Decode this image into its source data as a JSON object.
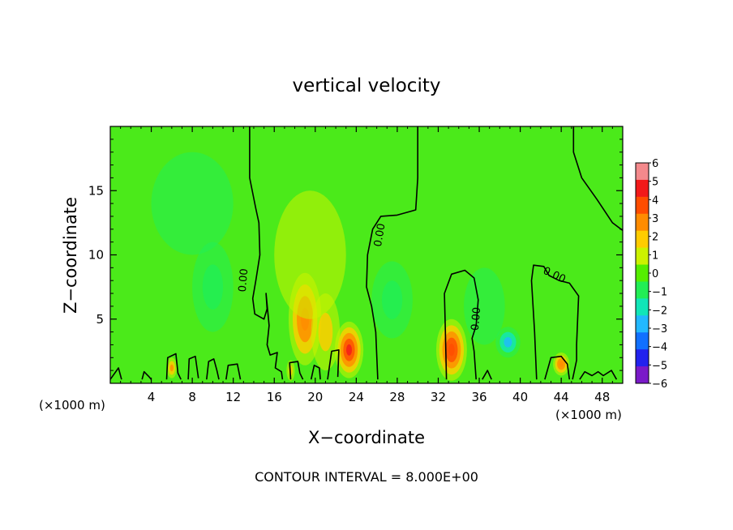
{
  "chart_data": {
    "type": "heatmap",
    "title": "vertical velocity",
    "xlabel": "X−coordinate",
    "ylabel": "Z−coordinate",
    "x_unit": "(×1000 m)",
    "y_unit": "(×1000 m)",
    "footer": "CONTOUR INTERVAL = 8.000E+00",
    "contour_label": "0.00",
    "xlim": [
      0,
      50
    ],
    "ylim": [
      0,
      20
    ],
    "xticks": [
      "4",
      "8",
      "12",
      "16",
      "20",
      "24",
      "28",
      "32",
      "36",
      "40",
      "44",
      "48"
    ],
    "xtick_values": [
      4,
      8,
      12,
      16,
      20,
      24,
      28,
      32,
      36,
      40,
      44,
      48
    ],
    "yticks": [
      "5",
      "10",
      "15"
    ],
    "ytick_values": [
      5,
      10,
      15
    ],
    "colorbar": {
      "labels": [
        "6",
        "5",
        "4",
        "3",
        "2",
        "1",
        "0",
        "−1",
        "−2",
        "−3",
        "−4",
        "−5",
        "−6"
      ],
      "colors": [
        "#f4898c",
        "#f21a1a",
        "#ff4d00",
        "#ff8c00",
        "#ffcc00",
        "#ccf200",
        "#55ee00",
        "#22ee55",
        "#11e6b8",
        "#22b8ff",
        "#1170ff",
        "#2222ee",
        "#7a1ac8"
      ]
    },
    "field_background": "#4bea1a",
    "blobs": [
      {
        "x": 19.0,
        "z": 5.0,
        "rx": 1.6,
        "rz": 3.6,
        "w": 3.3
      },
      {
        "x": 23.3,
        "z": 2.6,
        "rx": 1.4,
        "rz": 2.2,
        "w": 4.6
      },
      {
        "x": 33.3,
        "z": 2.6,
        "rx": 1.5,
        "rz": 2.4,
        "w": 4.3
      },
      {
        "x": 44.0,
        "z": 1.5,
        "rx": 0.8,
        "rz": 0.9,
        "w": 3.2
      },
      {
        "x": 21.0,
        "z": 4.0,
        "rx": 1.4,
        "rz": 3.0,
        "w": 2.0
      },
      {
        "x": 19.5,
        "z": 10.0,
        "rx": 3.5,
        "rz": 5.0,
        "w": 0.7
      },
      {
        "x": 10.0,
        "z": 7.5,
        "rx": 2.0,
        "rz": 3.5,
        "w": -1.3
      },
      {
        "x": 27.5,
        "z": 6.5,
        "rx": 2.0,
        "rz": 3.0,
        "w": -1.1
      },
      {
        "x": 38.8,
        "z": 3.2,
        "rx": 1.2,
        "rz": 1.2,
        "w": -2.6
      },
      {
        "x": 36.5,
        "z": 6.0,
        "rx": 2.0,
        "rz": 3.0,
        "w": -0.9
      },
      {
        "x": 8.0,
        "z": 14.0,
        "rx": 4.0,
        "rz": 4.0,
        "w": -0.6
      },
      {
        "x": 6.0,
        "z": 1.2,
        "rx": 0.5,
        "rz": 0.8,
        "w": 2.6
      },
      {
        "x": 17.6,
        "z": 1.0,
        "rx": 0.4,
        "rz": 0.8,
        "w": 2.0
      }
    ],
    "contours": [
      [
        [
          13.6,
          20
        ],
        [
          13.6,
          16
        ],
        [
          14.2,
          13.6
        ],
        [
          14.5,
          12.5
        ],
        [
          14.6,
          10
        ],
        [
          14.2,
          8
        ],
        [
          13.9,
          6.6
        ],
        [
          14.1,
          5.4
        ],
        [
          15,
          5
        ],
        [
          15.3,
          5.8
        ],
        [
          15.2,
          7.0
        ],
        [
          15.5,
          4.5
        ],
        [
          15.3,
          3
        ],
        [
          15.6,
          2.2
        ],
        [
          16.3,
          2.4
        ],
        [
          16.1,
          1.2
        ],
        [
          16.7,
          0.9
        ],
        [
          16.8,
          0.3
        ]
      ],
      [
        [
          30.0,
          20
        ],
        [
          30.0,
          16
        ],
        [
          29.8,
          13.5
        ],
        [
          28.0,
          13.1
        ],
        [
          26.4,
          13.0
        ],
        [
          25.6,
          12.0
        ],
        [
          25.1,
          10.0
        ],
        [
          25.0,
          7.5
        ],
        [
          25.5,
          6.0
        ],
        [
          25.9,
          4.0
        ],
        [
          26.1,
          0.3
        ]
      ],
      [
        [
          32.8,
          0.3
        ],
        [
          32.7,
          4
        ],
        [
          32.6,
          7
        ],
        [
          33.3,
          8.5
        ],
        [
          34.6,
          8.8
        ],
        [
          35.5,
          8.2
        ],
        [
          35.9,
          6.5
        ],
        [
          35.7,
          4.5
        ],
        [
          35.3,
          3.5
        ],
        [
          35.5,
          2.5
        ],
        [
          35.7,
          0.3
        ]
      ],
      [
        [
          41.6,
          0.3
        ],
        [
          41.4,
          4
        ],
        [
          41.1,
          8
        ],
        [
          41.3,
          9.2
        ],
        [
          42.3,
          9.1
        ],
        [
          42.8,
          8.4
        ],
        [
          43.8,
          8.0
        ],
        [
          44.8,
          7.8
        ],
        [
          45.7,
          6.8
        ],
        [
          45.6,
          5
        ],
        [
          45.5,
          3
        ],
        [
          45.5,
          1.8
        ],
        [
          45.1,
          0.3
        ]
      ],
      [
        [
          45.2,
          20
        ],
        [
          45.2,
          18
        ],
        [
          46.0,
          16.0
        ],
        [
          47.5,
          14.3
        ],
        [
          49.0,
          12.5
        ],
        [
          50,
          11.9
        ]
      ],
      [
        [
          0,
          0.3
        ],
        [
          0.8,
          1.2
        ],
        [
          1.1,
          0.3
        ]
      ],
      [
        [
          3.1,
          0.3
        ],
        [
          3.3,
          0.9
        ],
        [
          3.8,
          0.5
        ],
        [
          4.0,
          0.3
        ]
      ],
      [
        [
          5.5,
          0.3
        ],
        [
          5.6,
          2.0
        ],
        [
          6.4,
          2.3
        ],
        [
          6.6,
          0.8
        ],
        [
          6.9,
          0.3
        ]
      ],
      [
        [
          7.6,
          0.3
        ],
        [
          7.7,
          1.9
        ],
        [
          8.3,
          2.1
        ],
        [
          8.6,
          0.4
        ]
      ],
      [
        [
          9.4,
          0.3
        ],
        [
          9.6,
          1.7
        ],
        [
          10.1,
          1.9
        ],
        [
          10.4,
          1.0
        ],
        [
          10.6,
          0.3
        ]
      ],
      [
        [
          11.3,
          0.3
        ],
        [
          11.5,
          1.4
        ],
        [
          12.4,
          1.5
        ],
        [
          12.7,
          0.3
        ]
      ],
      [
        [
          17.6,
          0.3
        ],
        [
          17.5,
          1.6
        ],
        [
          18.3,
          1.7
        ],
        [
          18.5,
          0.8
        ],
        [
          18.8,
          0.3
        ]
      ],
      [
        [
          19.6,
          0.3
        ],
        [
          19.9,
          1.4
        ],
        [
          20.4,
          1.2
        ],
        [
          20.5,
          0.3
        ]
      ],
      [
        [
          21.2,
          0.3
        ],
        [
          21.6,
          2.5
        ],
        [
          22.3,
          2.6
        ],
        [
          22.2,
          0.5
        ]
      ],
      [
        [
          42.4,
          0.3
        ],
        [
          43.0,
          2.0
        ],
        [
          44.0,
          2.1
        ],
        [
          44.6,
          1.5
        ],
        [
          44.8,
          0.3
        ]
      ],
      [
        [
          45.8,
          0.3
        ],
        [
          46.3,
          0.9
        ],
        [
          47.0,
          0.6
        ],
        [
          47.6,
          0.9
        ],
        [
          48.1,
          0.6
        ],
        [
          48.9,
          1.0
        ],
        [
          49.4,
          0.3
        ]
      ],
      [
        [
          36.3,
          0.3
        ],
        [
          36.8,
          1.0
        ],
        [
          37.2,
          0.3
        ]
      ]
    ],
    "contour_label_positions": [
      {
        "x": 13.3,
        "z": 8.0,
        "angle": -85
      },
      {
        "x": 26.6,
        "z": 11.5,
        "angle": -80
      },
      {
        "x": 36.0,
        "z": 5.0,
        "angle": -85
      },
      {
        "x": 43.2,
        "z": 8.2,
        "angle": 25
      }
    ]
  }
}
